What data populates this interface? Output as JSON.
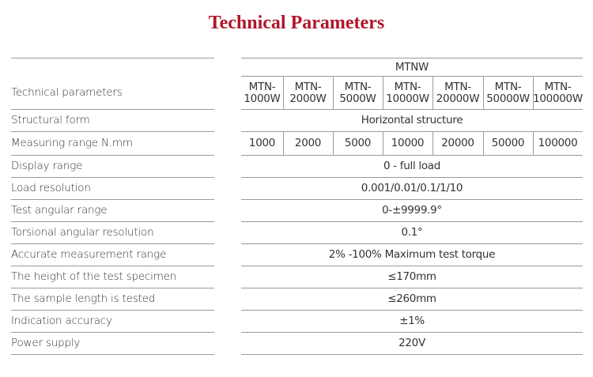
{
  "title": "Technical Parameters",
  "header": {
    "label": "Technical parameters",
    "group": "MTNW",
    "models": [
      "MTN-\n1000W",
      "MTN-\n2000W",
      "MTN-\n5000W",
      "MTN-\n10000W",
      "MTN-\n20000W",
      "MTN-\n50000W",
      "MTN-\n100000W"
    ]
  },
  "rows": [
    {
      "label": "Structural form",
      "value": "Horizontal structure"
    },
    {
      "label": "Measuring range N.mm",
      "values": [
        "1000",
        "2000",
        "5000",
        "10000",
        "20000",
        "50000",
        "100000"
      ]
    },
    {
      "label": "Display range",
      "value": "0 - full load"
    },
    {
      "label": "Load resolution",
      "value": "0.001/0.01/0.1/1/10"
    },
    {
      "label": "Test angular range",
      "value": "0-±9999.9°"
    },
    {
      "label": "Torsional angular resolution",
      "value": "0.1°"
    },
    {
      "label": "Accurate measurement range",
      "value": "2% -100% Maximum test torque"
    },
    {
      "label": "The height of the test specimen",
      "value": "≤170mm"
    },
    {
      "label": "The sample length is tested",
      "value": "≤260mm"
    },
    {
      "label": "Indication accuracy",
      "value": "±1%"
    },
    {
      "label": "Power supply",
      "value": "220V"
    }
  ]
}
